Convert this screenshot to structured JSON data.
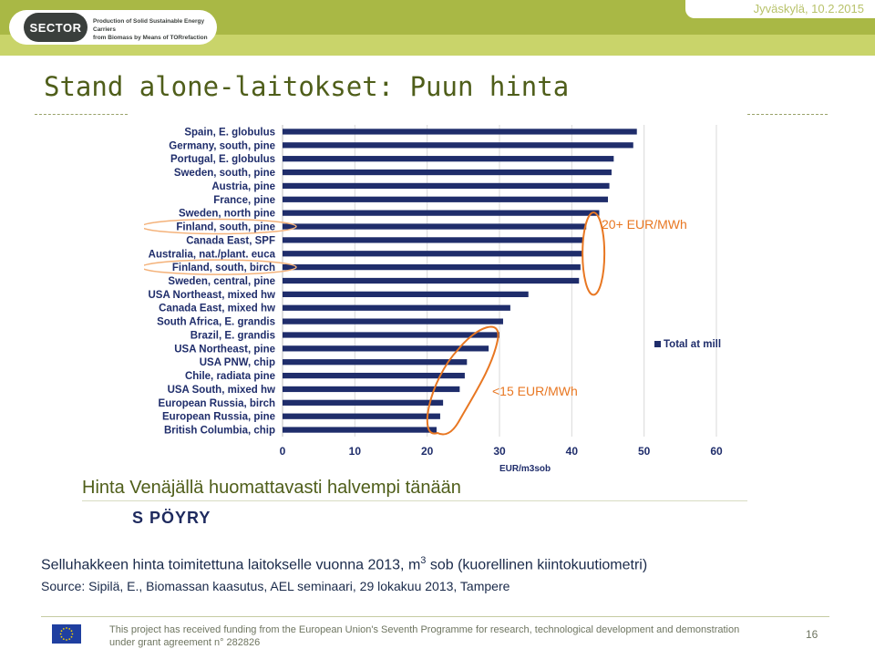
{
  "header": {
    "logo_text": "SECTOR",
    "logo_tagline_1": "Production of Solid Sustainable Energy Carriers",
    "logo_tagline_2": "from Biomass by Means of TORrefaction",
    "date": "Jyväskylä, 10.2.2015"
  },
  "slide": {
    "title": "Stand alone-laitokset: Puun hinta",
    "subtitle": "Hinta Venäjällä huomattavasti halvempi tänään",
    "poyry_logo": "PÖYRY",
    "description_before": "Selluhakkeen hinta toimitettuna laitokselle vuonna 2013, m",
    "description_sup": "3",
    "description_after": " sob (kuorellinen kiintokuutiometri)",
    "source": "Source: Sipilä, E., Biomassan kaasutus, AEL seminaari, 29 lokakuu 2013, Tampere"
  },
  "footer": {
    "line1": "This project has received funding from the European Union's Seventh Programme for research, technological development and demonstration",
    "line2": "under grant agreement n° 282826",
    "page_number": "16"
  },
  "chart_data": {
    "type": "bar",
    "orientation": "horizontal",
    "categories": [
      "Spain, E. globulus",
      "Germany, south, pine",
      "Portugal, E. globulus",
      "Sweden, south, pine",
      "Austria, pine",
      "France, pine",
      "Sweden, north pine",
      "Finland, south, pine",
      "Canada East, SPF",
      "Australia, nat./plant. euca",
      "Finland, south, birch",
      "Sweden, central, pine",
      "USA Northeast, mixed hw",
      "Canada East, mixed hw",
      "South Africa, E. grandis",
      "Brazil, E. grandis",
      "USA Northeast, pine",
      "USA PNW, chip",
      "Chile, radiata pine",
      "USA South, mixed hw",
      "European Russia, birch",
      "European Russia, pine",
      "British Columbia, chip"
    ],
    "series": [
      {
        "name": "Total at mill",
        "values": [
          49,
          48.5,
          45.8,
          45.5,
          45.2,
          45,
          43.8,
          42,
          41.5,
          41.5,
          41.2,
          41,
          34,
          31.5,
          30.5,
          30,
          28.5,
          25.5,
          25.2,
          24.5,
          22.2,
          21.8,
          21.3
        ]
      }
    ],
    "xlabel": "EUR/m3sob",
    "xlim": [
      0,
      60
    ],
    "xticks": [
      0,
      10,
      20,
      30,
      40,
      50,
      60
    ],
    "grid": "vertical",
    "legend": "right",
    "bar_color": "#1f2d6b",
    "annotations": [
      {
        "text": "20+ EUR/MWh",
        "color": "#e87722"
      },
      {
        "text": "<15 EUR/MWh",
        "color": "#e87722"
      }
    ],
    "highlighted_categories": [
      "Finland, south, pine",
      "Finland, south, birch"
    ]
  }
}
